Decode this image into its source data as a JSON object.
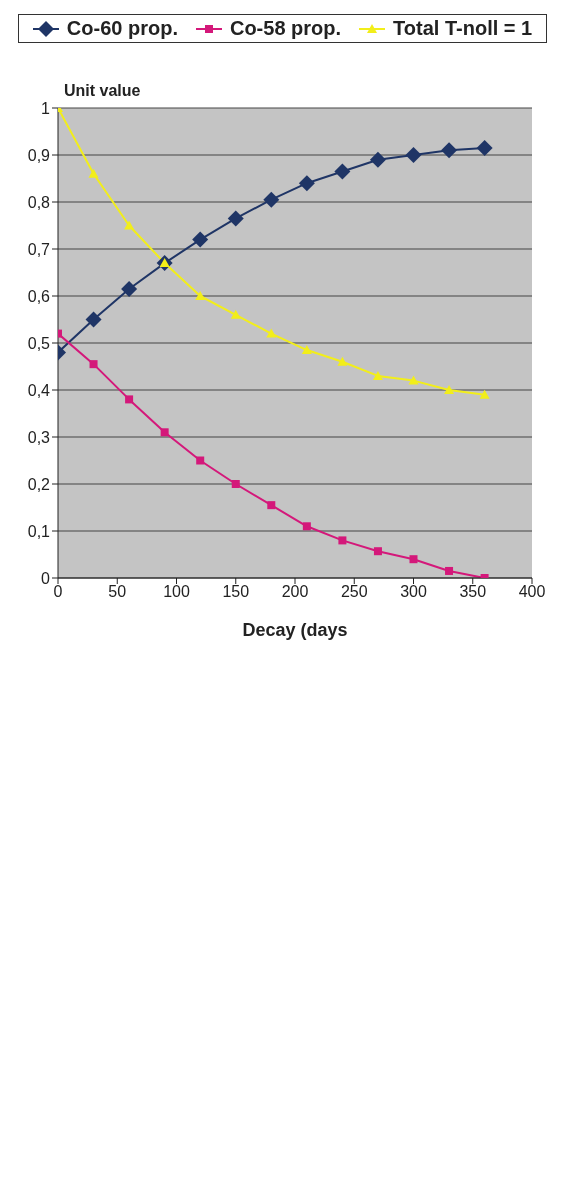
{
  "chart_data": {
    "type": "line",
    "xlabel": "Decay (days",
    "ylabel": "Unit value",
    "x": [
      0,
      30,
      60,
      90,
      120,
      150,
      180,
      210,
      240,
      270,
      300,
      330,
      360
    ],
    "series": [
      {
        "name": "Co-60 prop.",
        "color": "#1f3566",
        "marker": "diamond",
        "values": [
          0.48,
          0.55,
          0.615,
          0.67,
          0.72,
          0.765,
          0.805,
          0.84,
          0.865,
          0.89,
          0.9,
          0.91,
          0.915
        ]
      },
      {
        "name": "Co-58 prop.",
        "color": "#d4187a",
        "marker": "square",
        "values": [
          0.52,
          0.455,
          0.38,
          0.31,
          0.25,
          0.2,
          0.155,
          0.11,
          0.08,
          0.057,
          0.04,
          0.015,
          0.0
        ]
      },
      {
        "name": "Total T-noll = 1",
        "color": "#f2ee1a",
        "marker": "triangle",
        "values": [
          1.0,
          0.86,
          0.75,
          0.67,
          0.6,
          0.56,
          0.52,
          0.485,
          0.46,
          0.43,
          0.42,
          0.4,
          0.39
        ]
      }
    ],
    "xlim": [
      0,
      400
    ],
    "xticks": [
      0,
      50,
      100,
      150,
      200,
      250,
      300,
      350,
      400
    ],
    "ylim": [
      0,
      1
    ],
    "yticks": [
      0,
      {
        "value": 0.1,
        "label": "0,1"
      },
      {
        "value": 0.2,
        "label": "0,2"
      },
      {
        "value": 0.3,
        "label": "0,3"
      },
      {
        "value": 0.4,
        "label": "0,4"
      },
      {
        "value": 0.5,
        "label": "0,5"
      },
      {
        "value": 0.6,
        "label": "0,6"
      },
      {
        "value": 0.7,
        "label": "0,7"
      },
      {
        "value": 0.8,
        "label": "0,8"
      },
      {
        "value": 0.9,
        "label": "0,9"
      },
      1
    ],
    "grid": "y",
    "legend": "top",
    "line_style": "solid"
  }
}
